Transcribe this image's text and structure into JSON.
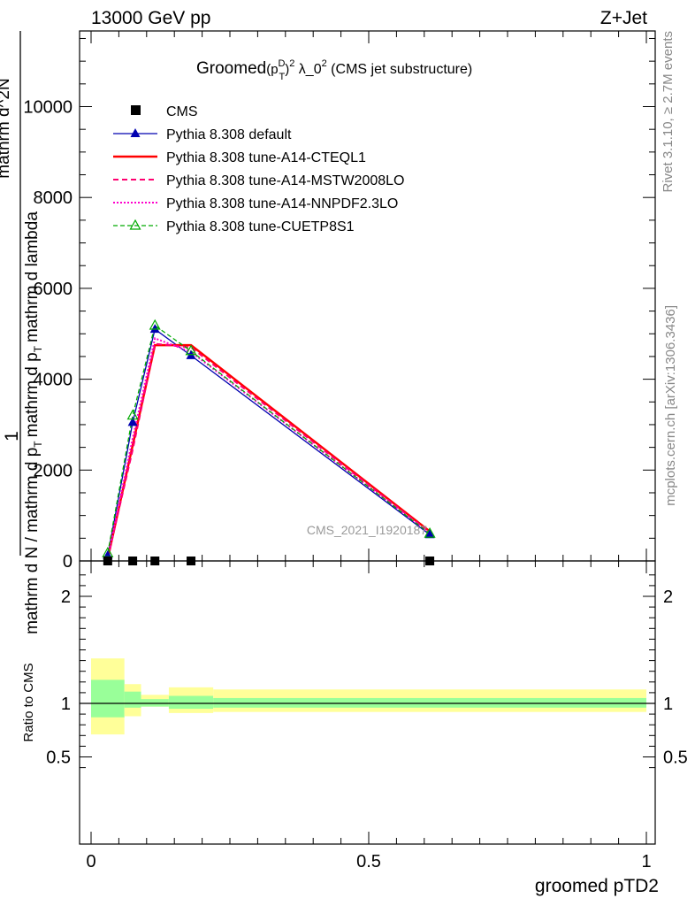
{
  "header": {
    "energy": "13000 GeV pp",
    "process": "Z+Jet"
  },
  "side_labels": {
    "rivet": "Rivet 3.1.10, ≥ 2.7M events",
    "mcplots": "mcplots.cern.ch [arXiv:1306.3436]"
  },
  "chart_data": [
    {
      "type": "line",
      "title": "Groomed(p_T^D)^2 λ_0^2 (CMS jet substructure)",
      "title_parts": {
        "pre": "Groomed",
        "p": "(p",
        "sup_d": "D",
        "sub_t": "T",
        "close": ")",
        "sup_2": "2",
        "lambda": " λ_0",
        "sup_2b": "2",
        "post": " (CMS jet substructure)"
      },
      "watermark": "CMS_2021_I1920187",
      "ylabel_parts": {
        "one": "1",
        "denominator": "mathrm d N / mathrm d p_T mathrm d p_T mathrm d lambda",
        "den_a": "mathrm d N / mathrm d p",
        "den_b": "mathrm d p",
        "den_c": "mathrm d lambda",
        "den_sub_t": "T",
        "numerator": "mathrm d^2N",
        "num_sup": "2"
      },
      "ylim": [
        0,
        11800
      ],
      "yticks": [
        {
          "v": 0,
          "label": "0"
        },
        {
          "v": 2000,
          "label": "2000"
        },
        {
          "v": 4000,
          "label": "4000"
        },
        {
          "v": 6000,
          "label": "6000"
        },
        {
          "v": 8000,
          "label": "8000"
        },
        {
          "v": 10000,
          "label": "10000"
        }
      ],
      "xlim": [
        -0.02,
        1.02
      ],
      "x_points": [
        0.03,
        0.075,
        0.115,
        0.18,
        0.61
      ],
      "cms": [
        0,
        0,
        0,
        0,
        0
      ],
      "series": [
        {
          "name": "CMS",
          "color": "#000000",
          "style": "marker-square"
        },
        {
          "name": "Pythia 8.308 default",
          "color": "#0000b0",
          "style": "solid-thin",
          "marker": "triangle-filled",
          "values": [
            120,
            3050,
            5100,
            4520,
            580
          ]
        },
        {
          "name": "Pythia 8.308 tune-A14-CTEQL1",
          "color": "#ff0000",
          "style": "solid-thick",
          "values": [
            50,
            2550,
            4750,
            4750,
            650
          ]
        },
        {
          "name": "Pythia 8.308 tune-A14-MSTW2008LO",
          "color": "#ff0070",
          "style": "dashed",
          "values": [
            60,
            2450,
            4780,
            4700,
            630
          ]
        },
        {
          "name": "Pythia 8.308 tune-A14-NNPDF2.3LO",
          "color": "#ff00cc",
          "style": "dotted",
          "values": [
            70,
            2700,
            4900,
            4600,
            610
          ]
        },
        {
          "name": "Pythia 8.308 tune-CUETP8S1",
          "color": "#00aa00",
          "style": "dashed-thin",
          "marker": "triangle-open",
          "values": [
            170,
            3200,
            5180,
            4620,
            600
          ]
        }
      ]
    },
    {
      "type": "area",
      "ylabel": "Ratio to CMS",
      "xlabel": "groomed pTD2",
      "ylim": [
        0.35,
        2.3
      ],
      "yticks": [
        {
          "v": 0.5,
          "label": "0.5"
        },
        {
          "v": 1,
          "label": "1"
        },
        {
          "v": 2,
          "label": "2"
        }
      ],
      "xticks": [
        {
          "v": 0,
          "label": "0"
        },
        {
          "v": 0.5,
          "label": "0.5"
        },
        {
          "v": 1,
          "label": "1"
        }
      ],
      "bands": [
        {
          "x0": 0.0,
          "x1": 0.06,
          "inner": [
            0.87,
            1.22
          ],
          "outer": [
            0.71,
            1.42
          ]
        },
        {
          "x0": 0.06,
          "x1": 0.09,
          "inner": [
            0.96,
            1.11
          ],
          "outer": [
            0.88,
            1.18
          ]
        },
        {
          "x0": 0.09,
          "x1": 0.14,
          "inner": [
            0.97,
            1.04
          ],
          "outer": [
            0.97,
            1.08
          ]
        },
        {
          "x0": 0.14,
          "x1": 0.22,
          "inner": [
            0.95,
            1.07
          ],
          "outer": [
            0.91,
            1.15
          ]
        },
        {
          "x0": 0.22,
          "x1": 1.0,
          "inner": [
            0.96,
            1.05
          ],
          "outer": [
            0.92,
            1.13
          ]
        }
      ],
      "inner_color": "#99ff99",
      "outer_color": "#ffff99"
    }
  ]
}
